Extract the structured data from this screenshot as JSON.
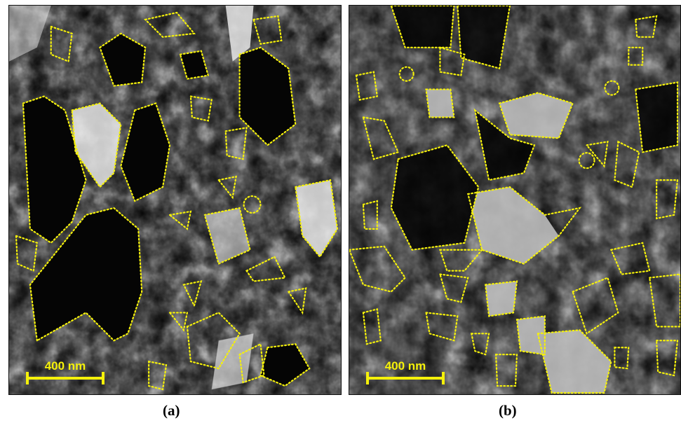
{
  "panels": [
    {
      "id": "a",
      "caption": "(a)",
      "scale_bar_label": "400 nm",
      "image": "tem-micrograph-with-outlined-grains"
    },
    {
      "id": "b",
      "caption": "(b)",
      "scale_bar_label": "400 nm",
      "image": "tem-micrograph-with-outlined-grains"
    }
  ],
  "colors": {
    "outline": "#f5f10a",
    "scale_bar": "#f5f10a"
  }
}
